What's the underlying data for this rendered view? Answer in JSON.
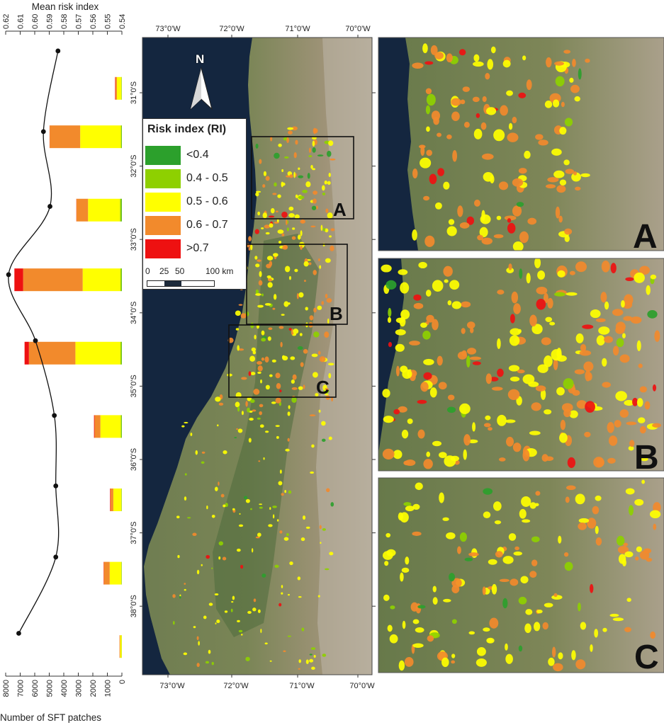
{
  "chart_data": {
    "type": "bar",
    "top_axis_title": "Mean risk index",
    "top_axis_ticks": [
      "0.62",
      "0.61",
      "0.60",
      "0.59",
      "0.58",
      "0.57",
      "0.56",
      "0.55",
      "0.54"
    ],
    "top_axis_range": [
      0.62,
      0.54
    ],
    "bottom_axis_title": "Number of SFT patches",
    "bottom_axis_ticks": [
      "8000",
      "7000",
      "6000",
      "5000",
      "4000",
      "3000",
      "2000",
      "1000",
      "0"
    ],
    "bottom_axis_range": [
      8000,
      0
    ],
    "stack_categories": [
      "<0.4",
      "0.4 - 0.5",
      "0.5 - 0.6",
      "0.6 - 0.7",
      ">0.7"
    ],
    "bars": [
      {
        "lat": -30.94,
        "values": [
          10,
          30,
          300,
          100,
          30
        ]
      },
      {
        "lat": -31.6,
        "values": [
          20,
          50,
          2800,
          2100,
          10
        ]
      },
      {
        "lat": -32.6,
        "values": [
          30,
          100,
          2200,
          800,
          10
        ]
      },
      {
        "lat": -33.55,
        "values": [
          20,
          80,
          2600,
          4100,
          600
        ]
      },
      {
        "lat": -34.55,
        "values": [
          20,
          80,
          3100,
          3200,
          300
        ]
      },
      {
        "lat": -35.55,
        "values": [
          20,
          60,
          1400,
          400,
          40
        ]
      },
      {
        "lat": -36.55,
        "values": [
          10,
          30,
          550,
          200,
          30
        ]
      },
      {
        "lat": -37.55,
        "values": [
          10,
          30,
          800,
          400,
          20
        ]
      },
      {
        "lat": -38.55,
        "values": [
          5,
          15,
          100,
          40,
          5
        ]
      }
    ],
    "curve": {
      "x": [
        0.584,
        0.594,
        0.5895,
        0.618,
        0.5995,
        0.5865,
        0.5855,
        0.5855,
        0.611
      ],
      "y": [
        -30.43,
        -31.53,
        -32.55,
        -33.48,
        -34.38,
        -35.4,
        -36.36,
        -37.33,
        -38.37
      ]
    }
  },
  "map": {
    "lon_labels": [
      "73°0'W",
      "72°0'W",
      "71°0'W",
      "70°0'W"
    ],
    "lat_labels": [
      "31°0'S",
      "32°0'S",
      "33°0'S",
      "34°0'S",
      "35°0'S",
      "36°0'S",
      "37°0'S",
      "38°0'S"
    ],
    "north_label": "N",
    "inset_labels": [
      "A",
      "B",
      "C"
    ],
    "legend": {
      "title": "Risk index (RI)",
      "items": [
        {
          "label": "<0.4",
          "color": "#2ca02c"
        },
        {
          "label": "0.4 - 0.5",
          "color": "#8ed000"
        },
        {
          "label": "0.5 - 0.6",
          "color": "#ffff00"
        },
        {
          "label": "0.6 - 0.7",
          "color": "#f28a2c"
        },
        {
          "label": ">0.7",
          "color": "#ee1111"
        }
      ],
      "scale_ticks": [
        "0",
        "25",
        "50",
        "100 km"
      ]
    },
    "colors": {
      "ocean": "#14263f",
      "land": "#7d8a5c",
      "mountain": "#a99b83",
      "valley": "#50703f"
    }
  }
}
